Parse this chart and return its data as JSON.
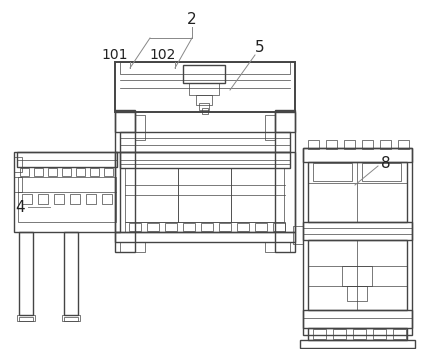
{
  "background_color": "#ffffff",
  "line_color": "#444444",
  "label_color": "#222222",
  "lw_main": 1.0,
  "lw_thin": 0.5,
  "lw_thick": 1.4,
  "label_fs": 10
}
